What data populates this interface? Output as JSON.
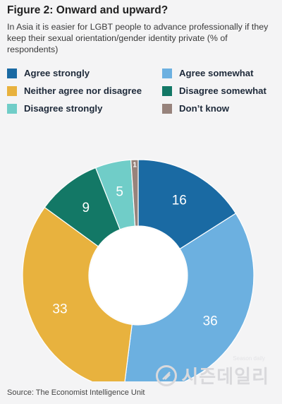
{
  "header": {
    "title": "Figure 2: Onward and upward?",
    "subtitle": "In Asia it is easier for LGBT people to advance professionally if they keep their sexual orientation/gender identity private (% of respondents)"
  },
  "legend": [
    {
      "label": "Agree strongly",
      "color": "#1a6aa3"
    },
    {
      "label": "Agree somewhat",
      "color": "#6cb0e0"
    },
    {
      "label": "Neither agree nor disagree",
      "color": "#e8b23e"
    },
    {
      "label": "Disagree somewhat",
      "color": "#137866"
    },
    {
      "label": "Disagree strongly",
      "color": "#70cdc8"
    },
    {
      "label": "Don’t know",
      "color": "#97837c"
    }
  ],
  "chart_data": {
    "type": "pie",
    "donut": true,
    "categories": [
      "Agree strongly",
      "Agree somewhat",
      "Neither agree nor disagree",
      "Disagree somewhat",
      "Disagree strongly",
      "Don’t know"
    ],
    "values": [
      16,
      36,
      33,
      9,
      5,
      1
    ],
    "colors": [
      "#1a6aa3",
      "#6cb0e0",
      "#e8b23e",
      "#137866",
      "#70cdc8",
      "#97837c"
    ],
    "start": "12 o'clock",
    "direction": "clockwise"
  },
  "footer": {
    "source": "Source: The Economist Intelligence Unit"
  },
  "watermark": {
    "text": "시즌데일리",
    "sub": "Season daily"
  }
}
